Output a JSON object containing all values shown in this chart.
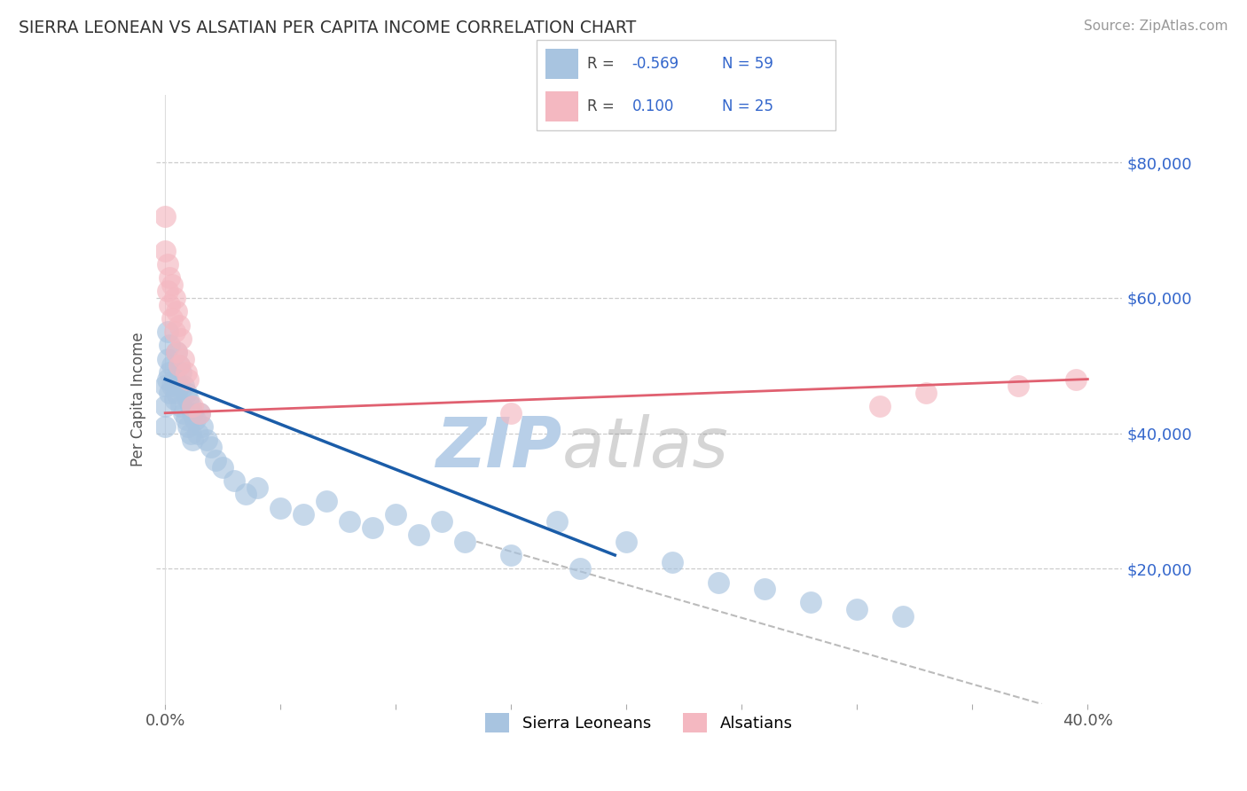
{
  "title": "SIERRA LEONEAN VS ALSATIAN PER CAPITA INCOME CORRELATION CHART",
  "source": "Source: ZipAtlas.com",
  "ylabel": "Per Capita Income",
  "x_ticks": [
    0.0,
    0.05,
    0.1,
    0.15,
    0.2,
    0.25,
    0.3,
    0.35,
    0.4
  ],
  "y_ticks": [
    0,
    20000,
    40000,
    60000,
    80000
  ],
  "y_tick_labels": [
    "",
    "$20,000",
    "$40,000",
    "$60,000",
    "$80,000"
  ],
  "xlim": [
    -0.004,
    0.415
  ],
  "ylim": [
    0,
    90000
  ],
  "sierra_color": "#a8c4e0",
  "alsatian_color": "#f4b8c1",
  "trend_blue": "#1a5ca8",
  "trend_pink": "#e06070",
  "trend_dash": "#bbbbbb",
  "watermark": "ZIPatlas",
  "watermark_blue": "#b8cfe8",
  "watermark_gray": "#888888",
  "legend_color": "#3366cc",
  "sierra_scatter_x": [
    0.0,
    0.0,
    0.0,
    0.001,
    0.001,
    0.001,
    0.002,
    0.002,
    0.002,
    0.003,
    0.003,
    0.004,
    0.004,
    0.005,
    0.005,
    0.006,
    0.006,
    0.007,
    0.007,
    0.008,
    0.008,
    0.009,
    0.009,
    0.01,
    0.01,
    0.011,
    0.011,
    0.012,
    0.012,
    0.013,
    0.014,
    0.015,
    0.016,
    0.018,
    0.02,
    0.022,
    0.025,
    0.03,
    0.035,
    0.04,
    0.05,
    0.06,
    0.07,
    0.08,
    0.09,
    0.1,
    0.11,
    0.12,
    0.13,
    0.15,
    0.17,
    0.18,
    0.2,
    0.22,
    0.24,
    0.26,
    0.28,
    0.3,
    0.32
  ],
  "sierra_scatter_y": [
    47000,
    44000,
    41000,
    55000,
    51000,
    48000,
    53000,
    49000,
    46000,
    50000,
    47000,
    48000,
    45000,
    52000,
    46000,
    50000,
    47000,
    49000,
    44000,
    47000,
    43000,
    46000,
    42000,
    45000,
    41000,
    44000,
    40000,
    43000,
    39000,
    42000,
    40000,
    43000,
    41000,
    39000,
    38000,
    36000,
    35000,
    33000,
    31000,
    32000,
    29000,
    28000,
    30000,
    27000,
    26000,
    28000,
    25000,
    27000,
    24000,
    22000,
    27000,
    20000,
    24000,
    21000,
    18000,
    17000,
    15000,
    14000,
    13000
  ],
  "alsatian_scatter_x": [
    0.0,
    0.0,
    0.001,
    0.001,
    0.002,
    0.002,
    0.003,
    0.003,
    0.004,
    0.004,
    0.005,
    0.005,
    0.006,
    0.006,
    0.007,
    0.008,
    0.009,
    0.01,
    0.012,
    0.015,
    0.15,
    0.31,
    0.33,
    0.37,
    0.395
  ],
  "alsatian_scatter_y": [
    72000,
    67000,
    65000,
    61000,
    63000,
    59000,
    62000,
    57000,
    60000,
    55000,
    58000,
    52000,
    56000,
    50000,
    54000,
    51000,
    49000,
    48000,
    44000,
    43000,
    43000,
    44000,
    46000,
    47000,
    48000
  ],
  "blue_trend_x": [
    0.0,
    0.195
  ],
  "blue_trend_y": [
    48000,
    22000
  ],
  "pink_trend_x": [
    0.0,
    0.4
  ],
  "pink_trend_y": [
    43000,
    48000
  ],
  "dash_trend_x": [
    0.135,
    0.38
  ],
  "dash_trend_y": [
    24000,
    0
  ]
}
